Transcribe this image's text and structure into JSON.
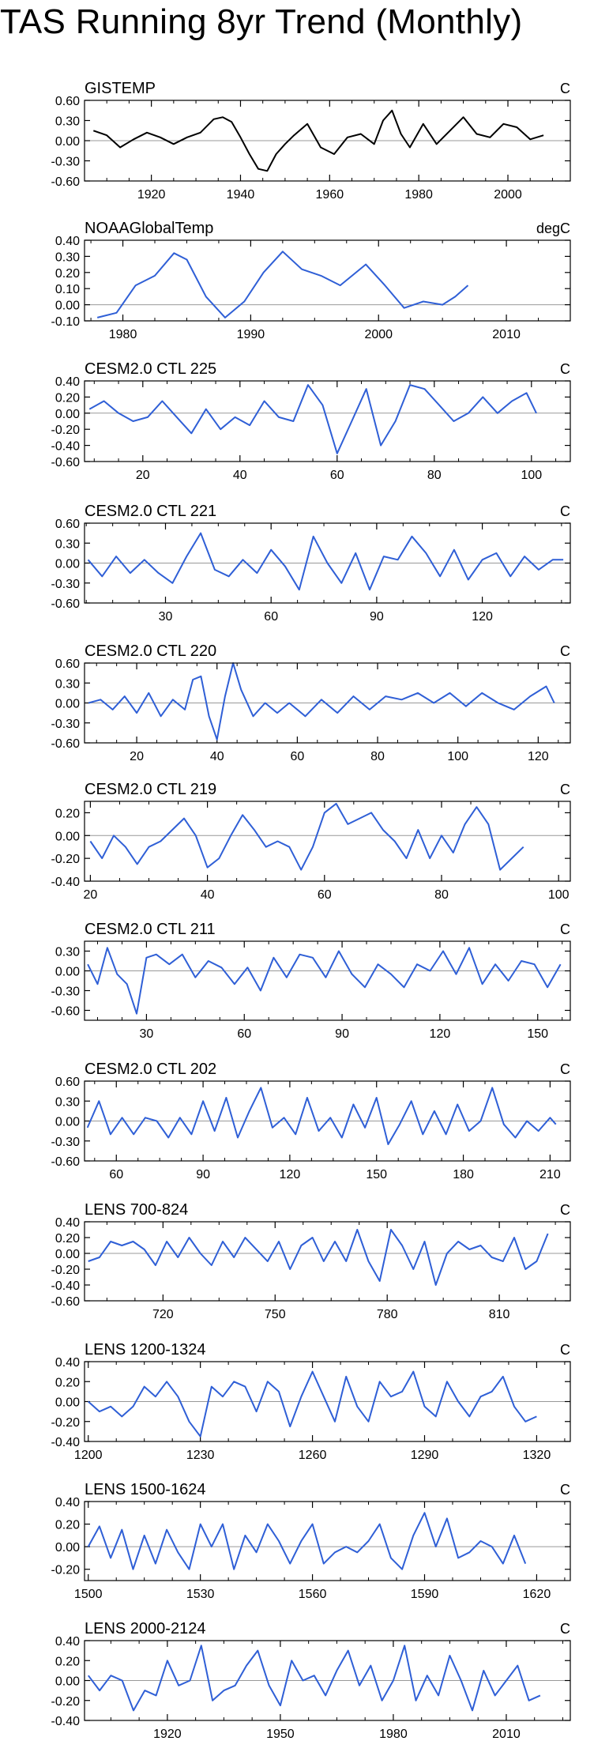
{
  "page": {
    "title": "TAS Running 8yr Trend (Monthly)"
  },
  "colors": {
    "observed_line": "#000000",
    "model_line": "#2f5fd6",
    "zero_line": "#999999",
    "axis": "#000000"
  },
  "chart_data": [
    {
      "type": "line",
      "title": "GISTEMP",
      "units": "C",
      "color": "black",
      "xlim": [
        1905,
        2014
      ],
      "ylim": [
        -0.6,
        0.6
      ],
      "xticks": [
        1920,
        1940,
        1960,
        1980,
        2000
      ],
      "yticks": [
        -0.6,
        -0.3,
        0.0,
        0.3,
        0.6
      ],
      "ytick_labels": [
        "-0.60",
        "-0.30",
        "0.00",
        "0.30",
        "0.60"
      ],
      "x": [
        1907,
        1910,
        1913,
        1916,
        1919,
        1922,
        1925,
        1928,
        1931,
        1934,
        1936,
        1938,
        1940,
        1942,
        1944,
        1946,
        1948,
        1950,
        1952,
        1955,
        1958,
        1961,
        1964,
        1967,
        1970,
        1972,
        1974,
        1976,
        1978,
        1981,
        1984,
        1987,
        1990,
        1993,
        1996,
        1999,
        2002,
        2005,
        2008
      ],
      "y": [
        0.15,
        0.08,
        -0.1,
        0.02,
        0.12,
        0.05,
        -0.05,
        0.05,
        0.12,
        0.32,
        0.35,
        0.28,
        0.05,
        -0.2,
        -0.42,
        -0.45,
        -0.2,
        -0.05,
        0.08,
        0.25,
        -0.1,
        -0.2,
        0.05,
        0.1,
        -0.05,
        0.3,
        0.45,
        0.1,
        -0.1,
        0.25,
        -0.05,
        0.15,
        0.35,
        0.1,
        0.05,
        0.25,
        0.2,
        0.02,
        0.08
      ]
    },
    {
      "type": "line",
      "title": "NOAAGlobalTemp",
      "units": "degC",
      "color": "blue",
      "xlim": [
        1977,
        2015
      ],
      "ylim": [
        -0.1,
        0.4
      ],
      "xticks": [
        1980,
        1990,
        2000,
        2010
      ],
      "yticks": [
        -0.1,
        0.0,
        0.1,
        0.2,
        0.3,
        0.4
      ],
      "ytick_labels": [
        "-0.10",
        "0.00",
        "0.10",
        "0.20",
        "0.30",
        "0.40"
      ],
      "x": [
        1978,
        1979.5,
        1981,
        1982.5,
        1984,
        1985,
        1986.5,
        1988,
        1989.5,
        1991,
        1992.5,
        1994,
        1995.5,
        1997,
        1999,
        2000.5,
        2002,
        2003.5,
        2005,
        2006,
        2007
      ],
      "y": [
        -0.08,
        -0.05,
        0.12,
        0.18,
        0.32,
        0.28,
        0.05,
        -0.08,
        0.02,
        0.2,
        0.33,
        0.22,
        0.18,
        0.12,
        0.25,
        0.12,
        -0.02,
        0.02,
        0.0,
        0.05,
        0.12
      ]
    },
    {
      "type": "line",
      "title": "CESM2.0 CTL 225",
      "units": "C",
      "color": "blue",
      "xlim": [
        8,
        108
      ],
      "ylim": [
        -0.6,
        0.4
      ],
      "xticks": [
        20,
        40,
        60,
        80,
        100
      ],
      "yticks": [
        -0.6,
        -0.4,
        -0.2,
        0.0,
        0.2,
        0.4
      ],
      "ytick_labels": [
        "-0.60",
        "-0.40",
        "-0.20",
        "0.00",
        "0.20",
        "0.40"
      ],
      "x": [
        9,
        12,
        15,
        18,
        21,
        24,
        27,
        30,
        33,
        36,
        39,
        42,
        45,
        48,
        51,
        54,
        57,
        60,
        63,
        66,
        69,
        72,
        75,
        78,
        81,
        84,
        87,
        90,
        93,
        96,
        99,
        101
      ],
      "y": [
        0.05,
        0.15,
        0.0,
        -0.1,
        -0.05,
        0.15,
        -0.05,
        -0.25,
        0.05,
        -0.2,
        -0.05,
        -0.15,
        0.15,
        -0.05,
        -0.1,
        0.35,
        0.1,
        -0.5,
        -0.1,
        0.3,
        -0.4,
        -0.1,
        0.35,
        0.3,
        0.1,
        -0.1,
        0.0,
        0.2,
        0.0,
        0.15,
        0.25,
        0.0
      ]
    },
    {
      "type": "line",
      "title": "CESM2.0 CTL 221",
      "units": "C",
      "color": "blue",
      "xlim": [
        7,
        145
      ],
      "ylim": [
        -0.6,
        0.6
      ],
      "xticks": [
        30,
        60,
        90,
        120
      ],
      "yticks": [
        -0.6,
        -0.3,
        0.0,
        0.3,
        0.6
      ],
      "ytick_labels": [
        "-0.60",
        "-0.30",
        "0.00",
        "0.30",
        "0.60"
      ],
      "x": [
        8,
        12,
        16,
        20,
        24,
        28,
        32,
        36,
        40,
        44,
        48,
        52,
        56,
        60,
        64,
        68,
        72,
        76,
        80,
        84,
        88,
        92,
        96,
        100,
        104,
        108,
        112,
        116,
        120,
        124,
        128,
        132,
        136,
        140,
        143
      ],
      "y": [
        0.05,
        -0.2,
        0.1,
        -0.15,
        0.05,
        -0.15,
        -0.3,
        0.1,
        0.45,
        -0.1,
        -0.2,
        0.05,
        -0.15,
        0.2,
        -0.05,
        -0.4,
        0.4,
        0.0,
        -0.3,
        0.15,
        -0.4,
        0.1,
        0.05,
        0.4,
        0.15,
        -0.2,
        0.2,
        -0.25,
        0.05,
        0.15,
        -0.2,
        0.1,
        -0.1,
        0.05,
        0.05
      ]
    },
    {
      "type": "line",
      "title": "CESM2.0 CTL 220",
      "units": "C",
      "color": "blue",
      "xlim": [
        7,
        128
      ],
      "ylim": [
        -0.6,
        0.6
      ],
      "xticks": [
        20,
        40,
        60,
        80,
        100,
        120
      ],
      "yticks": [
        -0.6,
        -0.3,
        0.0,
        0.3,
        0.6
      ],
      "ytick_labels": [
        "-0.60",
        "-0.30",
        "0.00",
        "0.30",
        "0.60"
      ],
      "x": [
        8,
        11,
        14,
        17,
        20,
        23,
        26,
        29,
        32,
        34,
        36,
        38,
        40,
        42,
        44,
        46,
        49,
        52,
        55,
        58,
        62,
        66,
        70,
        74,
        78,
        82,
        86,
        90,
        94,
        98,
        102,
        106,
        110,
        114,
        118,
        122,
        124
      ],
      "y": [
        0.0,
        0.05,
        -0.1,
        0.1,
        -0.15,
        0.15,
        -0.2,
        0.05,
        -0.1,
        0.35,
        0.4,
        -0.2,
        -0.55,
        0.1,
        0.6,
        0.2,
        -0.2,
        0.0,
        -0.15,
        0.0,
        -0.2,
        0.05,
        -0.15,
        0.1,
        -0.1,
        0.1,
        0.05,
        0.15,
        0.0,
        0.15,
        -0.05,
        0.15,
        0.0,
        -0.1,
        0.1,
        0.25,
        0.0
      ]
    },
    {
      "type": "line",
      "title": "CESM2.0 CTL 219",
      "units": "C",
      "color": "blue",
      "xlim": [
        19,
        102
      ],
      "ylim": [
        -0.4,
        0.3
      ],
      "xticks": [
        20,
        40,
        60,
        80,
        100
      ],
      "yticks": [
        -0.4,
        -0.2,
        0.0,
        0.2
      ],
      "ytick_labels": [
        "-0.40",
        "-0.20",
        "0.00",
        "0.20"
      ],
      "x": [
        20,
        22,
        24,
        26,
        28,
        30,
        32,
        34,
        36,
        38,
        40,
        42,
        44,
        46,
        48,
        50,
        52,
        54,
        56,
        58,
        60,
        62,
        64,
        66,
        68,
        70,
        72,
        74,
        76,
        78,
        80,
        82,
        84,
        86,
        88,
        90,
        92,
        94
      ],
      "y": [
        -0.05,
        -0.2,
        0.0,
        -0.1,
        -0.25,
        -0.1,
        -0.05,
        0.05,
        0.15,
        0.0,
        -0.28,
        -0.2,
        0.0,
        0.18,
        0.05,
        -0.1,
        -0.05,
        -0.1,
        -0.3,
        -0.1,
        0.2,
        0.28,
        0.1,
        0.15,
        0.2,
        0.05,
        -0.05,
        -0.2,
        0.05,
        -0.2,
        0.0,
        -0.15,
        0.1,
        0.25,
        0.1,
        -0.3,
        -0.2,
        -0.1
      ]
    },
    {
      "type": "line",
      "title": "CESM2.0 CTL 211",
      "units": "C",
      "color": "blue",
      "xlim": [
        11,
        160
      ],
      "ylim": [
        -0.75,
        0.45
      ],
      "xticks": [
        30,
        60,
        90,
        120,
        150
      ],
      "yticks": [
        -0.6,
        -0.3,
        0.0,
        0.3
      ],
      "ytick_labels": [
        "-0.60",
        "-0.30",
        "0.00",
        "0.30"
      ],
      "x": [
        12,
        15,
        18,
        21,
        24,
        27,
        30,
        33,
        37,
        41,
        45,
        49,
        53,
        57,
        61,
        65,
        69,
        73,
        77,
        81,
        85,
        89,
        93,
        97,
        101,
        105,
        109,
        113,
        117,
        121,
        125,
        129,
        133,
        137,
        141,
        145,
        149,
        153,
        157
      ],
      "y": [
        0.1,
        -0.2,
        0.35,
        -0.05,
        -0.2,
        -0.65,
        0.2,
        0.25,
        0.1,
        0.25,
        -0.1,
        0.15,
        0.05,
        -0.2,
        0.05,
        -0.3,
        0.2,
        -0.1,
        0.25,
        0.2,
        -0.1,
        0.3,
        -0.05,
        -0.25,
        0.1,
        -0.05,
        -0.25,
        0.1,
        0.0,
        0.3,
        -0.05,
        0.35,
        -0.2,
        0.1,
        -0.15,
        0.15,
        0.1,
        -0.25,
        0.1
      ]
    },
    {
      "type": "line",
      "title": "CESM2.0 CTL 202",
      "units": "C",
      "color": "blue",
      "xlim": [
        49,
        217
      ],
      "ylim": [
        -0.6,
        0.6
      ],
      "xticks": [
        60,
        90,
        120,
        150,
        180,
        210
      ],
      "yticks": [
        -0.6,
        -0.3,
        0.0,
        0.3,
        0.6
      ],
      "ytick_labels": [
        "-0.60",
        "-0.30",
        "0.00",
        "0.30",
        "0.60"
      ],
      "x": [
        50,
        54,
        58,
        62,
        66,
        70,
        74,
        78,
        82,
        86,
        90,
        94,
        98,
        102,
        106,
        110,
        114,
        118,
        122,
        126,
        130,
        134,
        138,
        142,
        146,
        150,
        154,
        158,
        162,
        166,
        170,
        174,
        178,
        182,
        186,
        190,
        194,
        198,
        202,
        206,
        210,
        212
      ],
      "y": [
        -0.1,
        0.3,
        -0.2,
        0.05,
        -0.2,
        0.05,
        0.0,
        -0.25,
        0.05,
        -0.2,
        0.3,
        -0.15,
        0.35,
        -0.25,
        0.15,
        0.5,
        -0.1,
        0.05,
        -0.2,
        0.35,
        -0.15,
        0.05,
        -0.25,
        0.25,
        -0.1,
        0.35,
        -0.35,
        -0.05,
        0.3,
        -0.2,
        0.15,
        -0.2,
        0.25,
        -0.15,
        0.0,
        0.5,
        -0.05,
        -0.25,
        0.0,
        -0.15,
        0.05,
        -0.05
      ]
    },
    {
      "type": "line",
      "title": "LENS 700-824",
      "units": "C",
      "color": "blue",
      "xlim": [
        699,
        829
      ],
      "ylim": [
        -0.6,
        0.4
      ],
      "xticks": [
        720,
        750,
        780,
        810
      ],
      "yticks": [
        -0.6,
        -0.4,
        -0.2,
        0.0,
        0.2,
        0.4
      ],
      "ytick_labels": [
        "-0.60",
        "-0.40",
        "-0.20",
        "0.00",
        "0.20",
        "0.40"
      ],
      "x": [
        700,
        703,
        706,
        709,
        712,
        715,
        718,
        721,
        724,
        727,
        730,
        733,
        736,
        739,
        742,
        745,
        748,
        751,
        754,
        757,
        760,
        763,
        766,
        769,
        772,
        775,
        778,
        781,
        784,
        787,
        790,
        793,
        796,
        799,
        802,
        805,
        808,
        811,
        814,
        817,
        820,
        823
      ],
      "y": [
        -0.1,
        -0.05,
        0.15,
        0.1,
        0.15,
        0.05,
        -0.15,
        0.15,
        -0.05,
        0.2,
        0.0,
        -0.15,
        0.15,
        -0.05,
        0.2,
        0.05,
        -0.1,
        0.15,
        -0.2,
        0.1,
        0.2,
        -0.1,
        0.15,
        -0.1,
        0.3,
        -0.1,
        -0.35,
        0.3,
        0.1,
        -0.2,
        0.15,
        -0.4,
        0.0,
        0.15,
        0.05,
        0.1,
        -0.05,
        -0.1,
        0.2,
        -0.2,
        -0.1,
        0.25
      ]
    },
    {
      "type": "line",
      "title": "LENS 1200-1324",
      "units": "C",
      "color": "blue",
      "xlim": [
        1199,
        1329
      ],
      "ylim": [
        -0.4,
        0.4
      ],
      "xticks": [
        1200,
        1230,
        1260,
        1290,
        1320
      ],
      "yticks": [
        -0.4,
        -0.2,
        0.0,
        0.2,
        0.4
      ],
      "ytick_labels": [
        "-0.40",
        "-0.20",
        "0.00",
        "0.20",
        "0.40"
      ],
      "x": [
        1200,
        1203,
        1206,
        1209,
        1212,
        1215,
        1218,
        1221,
        1224,
        1227,
        1230,
        1233,
        1236,
        1239,
        1242,
        1245,
        1248,
        1251,
        1254,
        1257,
        1260,
        1263,
        1266,
        1269,
        1272,
        1275,
        1278,
        1281,
        1284,
        1287,
        1290,
        1293,
        1296,
        1299,
        1302,
        1305,
        1308,
        1311,
        1314,
        1317,
        1320
      ],
      "y": [
        0.0,
        -0.1,
        -0.05,
        -0.15,
        -0.05,
        0.15,
        0.05,
        0.2,
        0.05,
        -0.2,
        -0.35,
        0.15,
        0.05,
        0.2,
        0.15,
        -0.1,
        0.2,
        0.1,
        -0.25,
        0.05,
        0.3,
        0.05,
        -0.2,
        0.25,
        -0.05,
        -0.2,
        0.2,
        0.05,
        0.1,
        0.3,
        -0.05,
        -0.15,
        0.2,
        0.0,
        -0.15,
        0.05,
        0.1,
        0.25,
        -0.05,
        -0.2,
        -0.15
      ]
    },
    {
      "type": "line",
      "title": "LENS 1500-1624",
      "units": "C",
      "color": "blue",
      "xlim": [
        1499,
        1629
      ],
      "ylim": [
        -0.3,
        0.4
      ],
      "xticks": [
        1500,
        1530,
        1560,
        1590,
        1620
      ],
      "yticks": [
        -0.2,
        0.0,
        0.2,
        0.4
      ],
      "ytick_labels": [
        "-0.20",
        "0.00",
        "0.20",
        "0.40"
      ],
      "x": [
        1500,
        1503,
        1506,
        1509,
        1512,
        1515,
        1518,
        1521,
        1524,
        1527,
        1530,
        1533,
        1536,
        1539,
        1542,
        1545,
        1548,
        1551,
        1554,
        1557,
        1560,
        1563,
        1566,
        1569,
        1572,
        1575,
        1578,
        1581,
        1584,
        1587,
        1590,
        1593,
        1596,
        1599,
        1602,
        1605,
        1608,
        1611,
        1614,
        1617
      ],
      "y": [
        0.0,
        0.18,
        -0.1,
        0.15,
        -0.2,
        0.1,
        -0.15,
        0.15,
        -0.05,
        -0.2,
        0.2,
        0.0,
        0.2,
        -0.2,
        0.1,
        -0.05,
        0.2,
        0.05,
        -0.15,
        0.05,
        0.2,
        -0.15,
        -0.05,
        0.0,
        -0.05,
        0.05,
        0.2,
        -0.1,
        -0.2,
        0.1,
        0.3,
        0.0,
        0.25,
        -0.1,
        -0.05,
        0.05,
        0.0,
        -0.15,
        0.1,
        -0.15
      ]
    },
    {
      "type": "line",
      "title": "LENS 2000-2124",
      "units": "C",
      "color": "blue",
      "xlim": [
        1898,
        2027
      ],
      "ylim": [
        -0.4,
        0.4
      ],
      "xticks": [
        1920,
        1950,
        1980,
        2010
      ],
      "yticks": [
        -0.4,
        -0.2,
        0.0,
        0.2,
        0.4
      ],
      "ytick_labels": [
        "-0.40",
        "-0.20",
        "0.00",
        "0.20",
        "0.40"
      ],
      "x": [
        1899,
        1902,
        1905,
        1908,
        1911,
        1914,
        1917,
        1920,
        1923,
        1926,
        1929,
        1932,
        1935,
        1938,
        1941,
        1944,
        1947,
        1950,
        1953,
        1956,
        1959,
        1962,
        1965,
        1968,
        1971,
        1974,
        1977,
        1980,
        1983,
        1986,
        1989,
        1992,
        1995,
        1998,
        2001,
        2004,
        2007,
        2010,
        2013,
        2016,
        2019
      ],
      "y": [
        0.05,
        -0.1,
        0.05,
        0.0,
        -0.3,
        -0.1,
        -0.15,
        0.2,
        -0.05,
        0.0,
        0.35,
        -0.2,
        -0.1,
        -0.05,
        0.15,
        0.3,
        -0.05,
        -0.25,
        0.2,
        0.0,
        0.05,
        -0.15,
        0.1,
        0.3,
        -0.05,
        0.15,
        -0.2,
        0.0,
        0.35,
        -0.2,
        0.05,
        -0.15,
        0.25,
        0.0,
        -0.3,
        0.1,
        -0.15,
        0.0,
        0.15,
        -0.2,
        -0.15
      ]
    }
  ]
}
